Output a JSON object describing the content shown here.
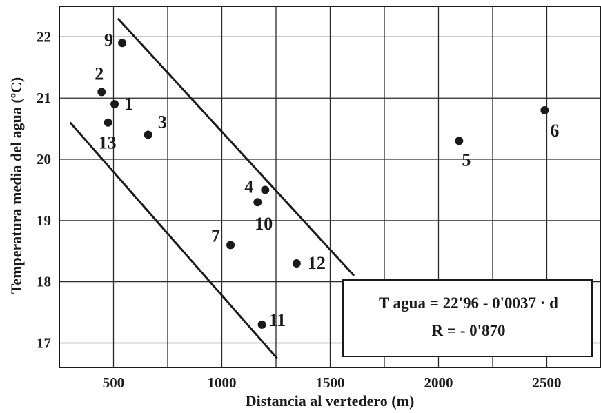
{
  "chart_data": {
    "type": "scatter",
    "xlabel": "Distancia al vertedero (m)",
    "ylabel": "Temperatura media del agua (ºC)",
    "xlim": [
      250,
      2750
    ],
    "ylim": [
      16.6,
      22.5
    ],
    "x_ticks": [
      500,
      1000,
      1500,
      2000,
      2500
    ],
    "y_ticks": [
      17,
      18,
      19,
      20,
      21,
      22
    ],
    "x_gridlines": [
      250,
      500,
      750,
      1000,
      1250,
      1500,
      1750,
      2000,
      2250,
      2500
    ],
    "y_gridlines": [
      17,
      18,
      19,
      20,
      21,
      22
    ],
    "points": [
      {
        "label": "1",
        "x": 505,
        "y": 20.9
      },
      {
        "label": "2",
        "x": 445,
        "y": 21.1
      },
      {
        "label": "3",
        "x": 660,
        "y": 20.4
      },
      {
        "label": "4",
        "x": 1200,
        "y": 19.5
      },
      {
        "label": "5",
        "x": 2095,
        "y": 20.3
      },
      {
        "label": "6",
        "x": 2490,
        "y": 20.8
      },
      {
        "label": "7",
        "x": 1040,
        "y": 18.6
      },
      {
        "label": "9",
        "x": 540,
        "y": 21.9
      },
      {
        "label": "10",
        "x": 1165,
        "y": 19.3
      },
      {
        "label": "11",
        "x": 1185,
        "y": 17.3
      },
      {
        "label": "12",
        "x": 1345,
        "y": 18.3
      },
      {
        "label": "13",
        "x": 475,
        "y": 20.6
      }
    ],
    "envelope_lines": [
      {
        "x": [
          520,
          1610
        ],
        "y": [
          22.3,
          18.1
        ]
      },
      {
        "x": [
          300,
          1255
        ],
        "y": [
          20.6,
          16.75
        ]
      }
    ],
    "annotation": {
      "line1": "T agua = 22'96 - 0'0037 · d",
      "line2": "R = - 0'870"
    },
    "grid": true,
    "point_color": "#1a1a1a"
  }
}
